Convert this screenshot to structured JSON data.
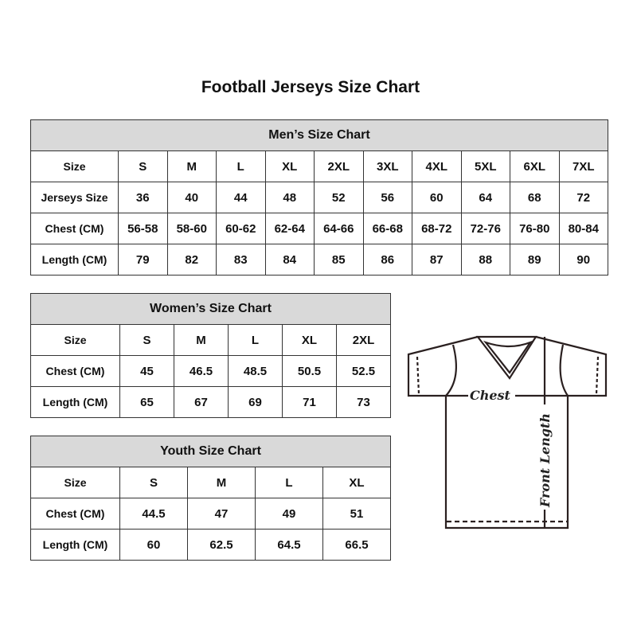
{
  "title": "Football Jerseys Size Chart",
  "men": {
    "caption": "Men’s Size Chart",
    "rows": [
      [
        "Size",
        "S",
        "M",
        "L",
        "XL",
        "2XL",
        "3XL",
        "4XL",
        "5XL",
        "6XL",
        "7XL"
      ],
      [
        "Jerseys Size",
        "36",
        "40",
        "44",
        "48",
        "52",
        "56",
        "60",
        "64",
        "68",
        "72"
      ],
      [
        "Chest (CM)",
        "56-58",
        "58-60",
        "60-62",
        "62-64",
        "64-66",
        "66-68",
        "68-72",
        "72-76",
        "76-80",
        "80-84"
      ],
      [
        "Length (CM)",
        "79",
        "82",
        "83",
        "84",
        "85",
        "86",
        "87",
        "88",
        "89",
        "90"
      ]
    ]
  },
  "women": {
    "caption": "Women’s Size Chart",
    "rows": [
      [
        "Size",
        "S",
        "M",
        "L",
        "XL",
        "2XL"
      ],
      [
        "Chest (CM)",
        "45",
        "46.5",
        "48.5",
        "50.5",
        "52.5"
      ],
      [
        "Length (CM)",
        "65",
        "67",
        "69",
        "71",
        "73"
      ]
    ]
  },
  "youth": {
    "caption": "Youth Size Chart",
    "rows": [
      [
        "Size",
        "S",
        "M",
        "L",
        "XL"
      ],
      [
        "Chest (CM)",
        "44.5",
        "47",
        "49",
        "51"
      ],
      [
        "Length (CM)",
        "60",
        "62.5",
        "64.5",
        "66.5"
      ]
    ]
  },
  "diagram": {
    "chest_label": "Chest",
    "length_label": "Front Length"
  }
}
